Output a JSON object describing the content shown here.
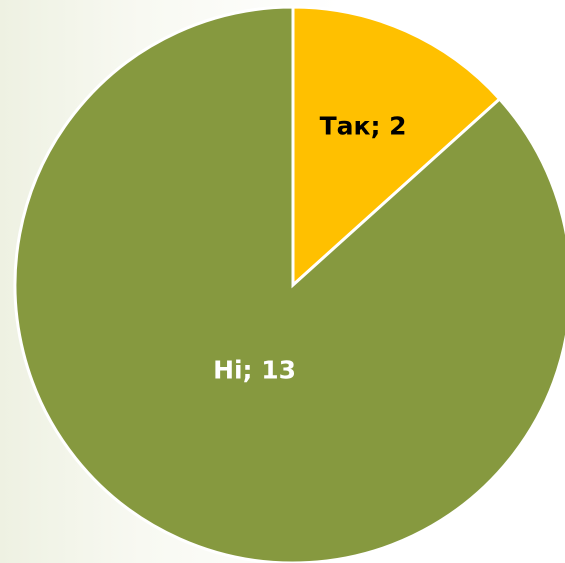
{
  "chart_data": {
    "type": "pie",
    "values": [
      2,
      13
    ],
    "value_labels": [
      "Так; 2",
      "Ні; 13"
    ],
    "colors": [
      "#ffc000",
      "#86993f"
    ],
    "start_angle": 0,
    "direction": "clockwise"
  }
}
